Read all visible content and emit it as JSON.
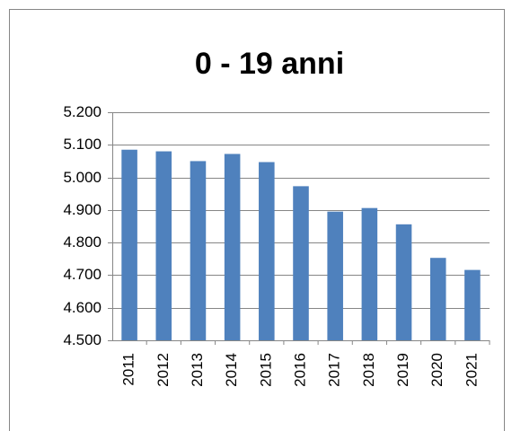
{
  "chart_data": {
    "type": "bar",
    "title": "0 - 19 anni",
    "categories": [
      "2011",
      "2012",
      "2013",
      "2014",
      "2015",
      "2016",
      "2017",
      "2018",
      "2019",
      "2020",
      "2021"
    ],
    "values": [
      5085,
      5080,
      5050,
      5072,
      5047,
      4973,
      4895,
      4906,
      4856,
      4753,
      4716
    ],
    "color": "#4f81bd",
    "ylim": [
      4500,
      5200
    ],
    "yticks": [
      {
        "value": 4500,
        "label": "4.500"
      },
      {
        "value": 4600,
        "label": "4.600"
      },
      {
        "value": 4700,
        "label": "4.700"
      },
      {
        "value": 4800,
        "label": "4.800"
      },
      {
        "value": 4900,
        "label": "4.900"
      },
      {
        "value": 5000,
        "label": "5.000"
      },
      {
        "value": 5100,
        "label": "5.100"
      },
      {
        "value": 5200,
        "label": "5.200"
      }
    ],
    "grid": true
  }
}
